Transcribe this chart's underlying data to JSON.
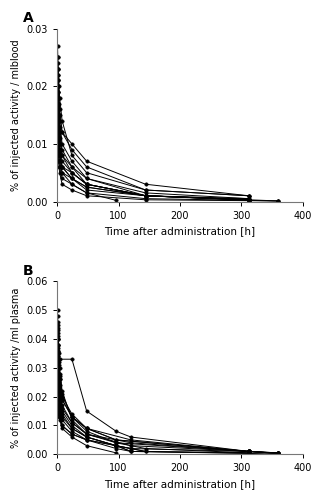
{
  "panel_a": {
    "label": "A",
    "ylabel": "% of injected activity / mlblood",
    "xlabel": "Time after administration [h]",
    "ylim": [
      0,
      0.03
    ],
    "yticks": [
      0.0,
      0.01,
      0.02,
      0.03
    ],
    "xlim": [
      0,
      400
    ],
    "xticks": [
      0,
      100,
      200,
      300,
      400
    ],
    "patients": [
      {
        "times": [
          0.5,
          1,
          2,
          3,
          4,
          8,
          24,
          48,
          144,
          312
        ],
        "values": [
          0.027,
          0.025,
          0.023,
          0.02,
          0.018,
          0.014,
          0.008,
          0.005,
          0.002,
          0.001
        ]
      },
      {
        "times": [
          0.5,
          1,
          2,
          3,
          4,
          8,
          24,
          48,
          144,
          312
        ],
        "values": [
          0.025,
          0.023,
          0.021,
          0.018,
          0.016,
          0.012,
          0.009,
          0.006,
          0.002,
          0.001
        ]
      },
      {
        "times": [
          0.5,
          1,
          2,
          3,
          4,
          8,
          24,
          48,
          144,
          312
        ],
        "values": [
          0.024,
          0.022,
          0.02,
          0.017,
          0.015,
          0.012,
          0.01,
          0.007,
          0.003,
          0.001
        ]
      },
      {
        "times": [
          0.5,
          1,
          2,
          3,
          4,
          8,
          24,
          48,
          144,
          312
        ],
        "values": [
          0.023,
          0.021,
          0.019,
          0.016,
          0.014,
          0.01,
          0.007,
          0.004,
          0.001,
          0.0005
        ]
      },
      {
        "times": [
          0.5,
          1,
          2,
          3,
          4,
          8,
          24,
          48,
          144,
          312
        ],
        "values": [
          0.022,
          0.02,
          0.018,
          0.015,
          0.013,
          0.009,
          0.006,
          0.004,
          0.0015,
          0.0005
        ]
      },
      {
        "times": [
          0.5,
          1,
          2,
          3,
          4,
          8,
          24,
          48,
          144,
          312
        ],
        "values": [
          0.021,
          0.019,
          0.017,
          0.014,
          0.012,
          0.008,
          0.006,
          0.003,
          0.001,
          0.0004
        ]
      },
      {
        "times": [
          0.5,
          1,
          2,
          3,
          4,
          8,
          24,
          48,
          144,
          312
        ],
        "values": [
          0.02,
          0.018,
          0.016,
          0.013,
          0.011,
          0.008,
          0.005,
          0.003,
          0.001,
          0.0003
        ]
      },
      {
        "times": [
          0.5,
          1,
          2,
          3,
          4,
          8,
          24,
          48,
          144,
          312
        ],
        "values": [
          0.019,
          0.017,
          0.015,
          0.012,
          0.01,
          0.007,
          0.005,
          0.003,
          0.001,
          0.0003
        ]
      },
      {
        "times": [
          0.5,
          1,
          2,
          3,
          4,
          8,
          24,
          48,
          144,
          312
        ],
        "values": [
          0.018,
          0.016,
          0.014,
          0.011,
          0.009,
          0.006,
          0.004,
          0.0025,
          0.001,
          0.0003
        ]
      },
      {
        "times": [
          0.5,
          1,
          2,
          3,
          4,
          8,
          24,
          48,
          144,
          312,
          360
        ],
        "values": [
          0.017,
          0.015,
          0.013,
          0.01,
          0.009,
          0.006,
          0.004,
          0.002,
          0.001,
          0.0003,
          0.0001
        ]
      },
      {
        "times": [
          0.5,
          1,
          2,
          3,
          4,
          8,
          24,
          48,
          144,
          312,
          360
        ],
        "values": [
          0.015,
          0.013,
          0.011,
          0.009,
          0.008,
          0.005,
          0.003,
          0.0015,
          0.0005,
          0.0002,
          0.0001
        ]
      },
      {
        "times": [
          0.5,
          1,
          2,
          3,
          4,
          8,
          24,
          48,
          144,
          312
        ],
        "values": [
          0.014,
          0.012,
          0.01,
          0.009,
          0.008,
          0.006,
          0.005,
          0.003,
          0.001,
          0.0003
        ]
      },
      {
        "times": [
          0.5,
          1,
          2,
          3,
          4,
          8,
          24,
          48,
          144,
          312
        ],
        "values": [
          0.013,
          0.011,
          0.009,
          0.008,
          0.007,
          0.005,
          0.004,
          0.0025,
          0.001,
          0.0002
        ]
      },
      {
        "times": [
          0.5,
          1,
          2,
          3,
          4,
          8,
          24,
          48,
          96
        ],
        "values": [
          0.011,
          0.01,
          0.008,
          0.007,
          0.006,
          0.004,
          0.003,
          0.0015,
          0.0002
        ]
      },
      {
        "times": [
          0.5,
          1,
          2,
          3,
          4,
          8,
          24,
          48,
          144,
          312,
          360
        ],
        "values": [
          0.01,
          0.009,
          0.007,
          0.006,
          0.005,
          0.003,
          0.002,
          0.001,
          0.0003,
          0.00015,
          0.0001
        ]
      }
    ]
  },
  "panel_b": {
    "label": "B",
    "ylabel": "% of injected activity /ml plasma",
    "xlabel": "Time after administration [h]",
    "ylim": [
      0,
      0.06
    ],
    "yticks": [
      0.0,
      0.01,
      0.02,
      0.03,
      0.04,
      0.05,
      0.06
    ],
    "xlim": [
      0,
      400
    ],
    "xticks": [
      0,
      100,
      200,
      300,
      400
    ],
    "patients": [
      {
        "times": [
          0.5,
          1,
          2,
          3,
          4,
          8,
          24,
          48,
          120,
          312,
          360
        ],
        "values": [
          0.05,
          0.045,
          0.04,
          0.035,
          0.03,
          0.022,
          0.012,
          0.007,
          0.003,
          0.001,
          0.0005
        ]
      },
      {
        "times": [
          0.5,
          1,
          2,
          3,
          4,
          8,
          24,
          48,
          96,
          312,
          360
        ],
        "values": [
          0.048,
          0.043,
          0.038,
          0.033,
          0.028,
          0.021,
          0.013,
          0.008,
          0.004,
          0.001,
          0.0004
        ]
      },
      {
        "times": [
          0.5,
          1,
          2,
          3,
          4,
          8,
          24,
          48,
          96,
          312,
          360
        ],
        "values": [
          0.046,
          0.041,
          0.037,
          0.032,
          0.027,
          0.02,
          0.014,
          0.009,
          0.005,
          0.001,
          0.0004
        ]
      },
      {
        "times": [
          0.5,
          1,
          2,
          3,
          4,
          8,
          24,
          48,
          96,
          312,
          360
        ],
        "values": [
          0.044,
          0.04,
          0.035,
          0.031,
          0.026,
          0.019,
          0.013,
          0.009,
          0.005,
          0.001,
          0.0003
        ]
      },
      {
        "times": [
          0.5,
          1,
          2,
          3,
          4,
          8,
          24,
          48,
          120,
          312,
          360
        ],
        "values": [
          0.042,
          0.038,
          0.034,
          0.03,
          0.026,
          0.019,
          0.013,
          0.009,
          0.005,
          0.001,
          0.0003
        ]
      },
      {
        "times": [
          0.5,
          1,
          2,
          3,
          4,
          8,
          24,
          48,
          120,
          312,
          360
        ],
        "values": [
          0.04,
          0.036,
          0.032,
          0.028,
          0.024,
          0.017,
          0.011,
          0.007,
          0.004,
          0.001,
          0.0003
        ]
      },
      {
        "times": [
          0.5,
          1,
          2,
          3,
          4,
          8,
          24,
          48,
          96,
          144,
          312
        ],
        "values": [
          0.038,
          0.034,
          0.03,
          0.026,
          0.022,
          0.016,
          0.011,
          0.007,
          0.004,
          0.002,
          0.0005
        ]
      },
      {
        "times": [
          0.5,
          1,
          2,
          3,
          4,
          8,
          24,
          48,
          96,
          144
        ],
        "values": [
          0.036,
          0.032,
          0.028,
          0.025,
          0.021,
          0.015,
          0.01,
          0.006,
          0.003,
          0.001
        ]
      },
      {
        "times": [
          0.5,
          1,
          2,
          3,
          4,
          8,
          24,
          48,
          96,
          144,
          312
        ],
        "values": [
          0.033,
          0.03,
          0.026,
          0.023,
          0.019,
          0.014,
          0.009,
          0.006,
          0.003,
          0.001,
          0.0005
        ]
      },
      {
        "times": [
          0.5,
          1,
          2,
          3,
          4,
          8,
          24,
          48,
          96,
          120,
          312
        ],
        "values": [
          0.03,
          0.027,
          0.024,
          0.021,
          0.018,
          0.013,
          0.009,
          0.006,
          0.003,
          0.001,
          0.0004
        ]
      },
      {
        "times": [
          0.5,
          1,
          2,
          3,
          4,
          8,
          24,
          48,
          96,
          120,
          312,
          360
        ],
        "values": [
          0.028,
          0.025,
          0.022,
          0.019,
          0.016,
          0.012,
          0.008,
          0.005,
          0.003,
          0.001,
          0.0003,
          0.0001
        ]
      },
      {
        "times": [
          0.5,
          1,
          2,
          3,
          4,
          8,
          24,
          48,
          96,
          120
        ],
        "values": [
          0.025,
          0.022,
          0.019,
          0.017,
          0.014,
          0.01,
          0.007,
          0.005,
          0.002,
          0.001
        ]
      },
      {
        "times": [
          0.5,
          1,
          2,
          3,
          4,
          8,
          24,
          48,
          96,
          120,
          312
        ],
        "values": [
          0.022,
          0.02,
          0.017,
          0.015,
          0.013,
          0.01,
          0.007,
          0.005,
          0.003,
          0.002,
          0.001
        ]
      },
      {
        "times": [
          0.5,
          1,
          2,
          3,
          4,
          8,
          24,
          48,
          96
        ],
        "values": [
          0.017,
          0.016,
          0.014,
          0.013,
          0.012,
          0.009,
          0.006,
          0.003,
          0.0005
        ]
      },
      {
        "times": [
          0.5,
          1,
          4,
          24,
          48,
          96,
          120,
          312,
          360
        ],
        "values": [
          0.033,
          0.033,
          0.033,
          0.033,
          0.015,
          0.008,
          0.006,
          0.001,
          0.0005
        ]
      }
    ]
  },
  "line_color": "#000000",
  "marker": "o",
  "markersize": 2.5,
  "linewidth": 0.7
}
